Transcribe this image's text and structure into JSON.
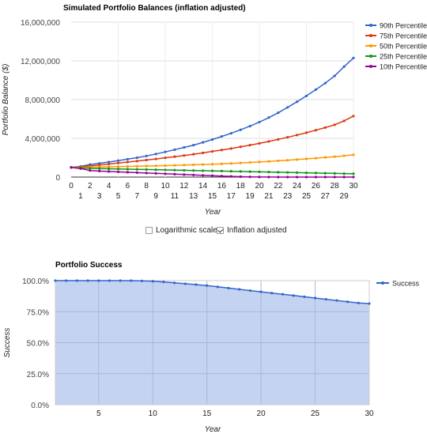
{
  "chart_data": [
    {
      "type": "line",
      "title": "Simulated Portfolio Balances (inflation adjusted)",
      "xlabel": "Year",
      "ylabel": "Portfolio Balance ($)",
      "x": [
        0,
        1,
        2,
        3,
        4,
        5,
        6,
        7,
        8,
        9,
        10,
        11,
        12,
        13,
        14,
        15,
        16,
        17,
        18,
        19,
        20,
        21,
        22,
        23,
        24,
        25,
        26,
        27,
        28,
        29,
        30
      ],
      "x_tick_labels_top": [
        "0",
        "2",
        "4",
        "6",
        "8",
        "10",
        "12",
        "14",
        "16",
        "18",
        "20",
        "22",
        "24",
        "26",
        "28",
        "30"
      ],
      "x_tick_labels_bottom": [
        "1",
        "3",
        "5",
        "7",
        "9",
        "11",
        "13",
        "15",
        "17",
        "19",
        "21",
        "23",
        "25",
        "27",
        "29"
      ],
      "y_tick_labels": [
        "0",
        "4,000,000",
        "8,000,000",
        "12,000,000",
        "16,000,000"
      ],
      "ylim": [
        0,
        16000000
      ],
      "grid": true,
      "legend_position": "right",
      "series": [
        {
          "name": "90th Percentile",
          "color": "#3366cc",
          "values": [
            1000000,
            1100000,
            1300000,
            1420000,
            1550000,
            1700000,
            1850000,
            2000000,
            2180000,
            2380000,
            2600000,
            2830000,
            3060000,
            3300000,
            3580000,
            3880000,
            4200000,
            4520000,
            4880000,
            5260000,
            5680000,
            6140000,
            6640000,
            7200000,
            7780000,
            8380000,
            9030000,
            9700000,
            10450000,
            11400000,
            12300000
          ]
        },
        {
          "name": "75th Percentile",
          "color": "#dc3912",
          "values": [
            1000000,
            1050000,
            1150000,
            1250000,
            1350000,
            1450000,
            1550000,
            1650000,
            1760000,
            1870000,
            1990000,
            2110000,
            2230000,
            2360000,
            2500000,
            2650000,
            2800000,
            2950000,
            3120000,
            3300000,
            3480000,
            3680000,
            3890000,
            4110000,
            4340000,
            4580000,
            4840000,
            5110000,
            5400000,
            5800000,
            6300000
          ]
        },
        {
          "name": "50th Percentile",
          "color": "#ff9900",
          "values": [
            1000000,
            1000000,
            1020000,
            1040000,
            1060000,
            1080000,
            1100000,
            1120000,
            1140000,
            1160000,
            1180000,
            1210000,
            1240000,
            1270000,
            1300000,
            1330000,
            1370000,
            1410000,
            1460000,
            1510000,
            1560000,
            1620000,
            1680000,
            1740000,
            1810000,
            1880000,
            1950000,
            2030000,
            2110000,
            2200000,
            2300000
          ]
        },
        {
          "name": "25th Percentile",
          "color": "#109618",
          "values": [
            1000000,
            950000,
            900000,
            880000,
            860000,
            840000,
            820000,
            800000,
            780000,
            760000,
            740000,
            720000,
            700000,
            680000,
            660000,
            640000,
            620000,
            600000,
            580000,
            560000,
            540000,
            520000,
            500000,
            480000,
            460000,
            440000,
            420000,
            400000,
            380000,
            360000,
            350000
          ]
        },
        {
          "name": "10th Percentile",
          "color": "#990099",
          "values": [
            1000000,
            880000,
            680000,
            620000,
            580000,
            540000,
            500000,
            460000,
            420000,
            380000,
            340000,
            300000,
            260000,
            220000,
            180000,
            140000,
            100000,
            70000,
            40000,
            20000,
            10000,
            5000,
            0,
            0,
            0,
            0,
            0,
            0,
            0,
            0,
            0
          ]
        }
      ]
    },
    {
      "type": "area",
      "title": "Portfolio Success",
      "xlabel": "Year",
      "ylabel": "Success",
      "x": [
        1,
        2,
        3,
        4,
        5,
        6,
        7,
        8,
        9,
        10,
        11,
        12,
        13,
        14,
        15,
        16,
        17,
        18,
        19,
        20,
        21,
        22,
        23,
        24,
        25,
        26,
        27,
        28,
        29,
        30
      ],
      "x_tick_labels": [
        "5",
        "10",
        "15",
        "20",
        "25",
        "30"
      ],
      "y_tick_labels": [
        "0.0%",
        "25.0%",
        "50.0%",
        "75.0%",
        "100.0%"
      ],
      "ylim": [
        0,
        100
      ],
      "grid": true,
      "legend_position": "right",
      "series": [
        {
          "name": "Success",
          "color": "#3366cc",
          "fill": "#c5d3f2",
          "values": [
            100,
            100,
            100,
            100,
            100,
            100,
            100,
            100,
            99.8,
            99.5,
            99,
            98.2,
            97.5,
            96.8,
            96,
            95,
            94,
            93,
            92,
            91,
            90,
            89,
            88,
            87,
            86,
            85,
            84,
            83,
            82,
            81.5
          ]
        }
      ]
    }
  ],
  "controls": {
    "log_scale_label": "Logarithmic scale",
    "log_scale_checked": false,
    "inflation_label": "Inflation adjusted",
    "inflation_checked": true
  }
}
